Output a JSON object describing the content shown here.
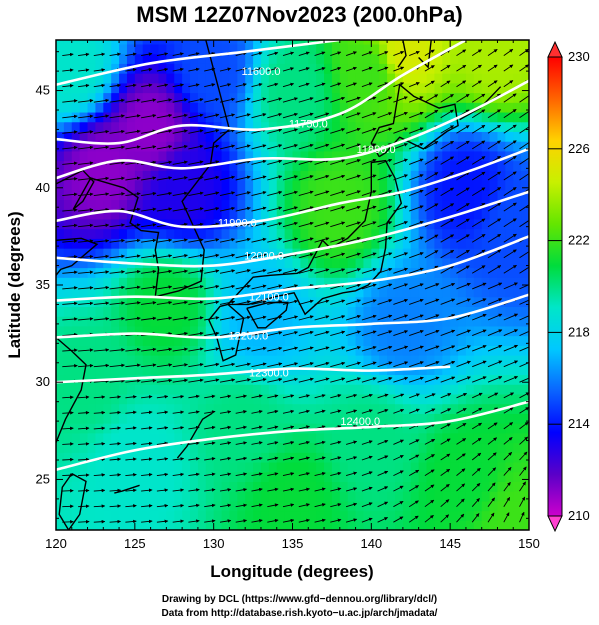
{
  "title": "MSM 12Z07Nov2023 (200.0hPa)",
  "chart_data": {
    "type": "heatmap",
    "title": "MSM 12Z07Nov2023 (200.0hPa)",
    "xlabel": "Longitude (degrees)",
    "ylabel": "Latitude  (degrees)",
    "xlim": [
      120,
      150
    ],
    "ylim": [
      22.4,
      47.6
    ],
    "x_ticks": [
      "120",
      "125",
      "130",
      "135",
      "140",
      "145",
      "150"
    ],
    "y_ticks": [
      "25",
      "30",
      "35",
      "40",
      "45"
    ],
    "colorbar": {
      "range": [
        210,
        230
      ],
      "ticks": [
        "210",
        "214",
        "218",
        "222",
        "226",
        "230"
      ],
      "colors": [
        "#cc00cc",
        "#5a00c8",
        "#0000ff",
        "#0a64ff",
        "#00c8ff",
        "#00e6c8",
        "#00dc3c",
        "#64e600",
        "#c8f000",
        "#ffd200",
        "#ff6400",
        "#ff0000"
      ]
    },
    "temperature_field_samples": [
      {
        "lon": 121,
        "lat": 46,
        "value": 219
      },
      {
        "lon": 123,
        "lat": 41,
        "value": 211
      },
      {
        "lon": 126,
        "lat": 43,
        "value": 211
      },
      {
        "lon": 128,
        "lat": 40,
        "value": 213
      },
      {
        "lon": 130,
        "lat": 46,
        "value": 215
      },
      {
        "lon": 135,
        "lat": 45,
        "value": 220
      },
      {
        "lon": 140,
        "lat": 46,
        "value": 222
      },
      {
        "lon": 142,
        "lat": 47,
        "value": 225
      },
      {
        "lon": 148,
        "lat": 47,
        "value": 224
      },
      {
        "lon": 146,
        "lat": 40,
        "value": 214
      },
      {
        "lon": 149,
        "lat": 38,
        "value": 215
      },
      {
        "lon": 138,
        "lat": 39,
        "value": 222
      },
      {
        "lon": 142,
        "lat": 33,
        "value": 216
      },
      {
        "lon": 133,
        "lat": 33,
        "value": 217
      },
      {
        "lon": 127,
        "lat": 34,
        "value": 221
      },
      {
        "lon": 122,
        "lat": 30,
        "value": 220
      },
      {
        "lon": 125,
        "lat": 26,
        "value": 219
      },
      {
        "lon": 132,
        "lat": 28,
        "value": 220
      },
      {
        "lon": 140,
        "lat": 27,
        "value": 220
      },
      {
        "lon": 146,
        "lat": 25,
        "value": 221
      },
      {
        "lon": 149,
        "lat": 23,
        "value": 222
      },
      {
        "lon": 135,
        "lat": 24,
        "value": 221
      }
    ],
    "contour_labels": [
      "11600.0",
      "11750.0",
      "11800.0",
      "11900.0",
      "12000.0",
      "12100.0",
      "12200.0",
      "12300.0",
      "12400.0"
    ],
    "height_contours": [
      {
        "label": "11600.0",
        "points": [
          [
            120,
            45.3
          ],
          [
            126,
            46.4
          ],
          [
            132,
            47.0
          ],
          [
            138,
            47.6
          ]
        ],
        "label_at": [
          133,
          45.8
        ]
      },
      {
        "label": "11750.0",
        "points": [
          [
            120,
            42.5
          ],
          [
            124,
            42.3
          ],
          [
            128,
            43.2
          ],
          [
            133,
            43.0
          ],
          [
            138,
            43.8
          ],
          [
            142,
            45.8
          ],
          [
            146,
            47.6
          ]
        ],
        "label_at": [
          136,
          43.1
        ]
      },
      {
        "label": "11800.0",
        "points": [
          [
            120,
            40.5
          ],
          [
            124,
            41.4
          ],
          [
            128,
            41.0
          ],
          [
            133,
            41.5
          ],
          [
            138,
            41.5
          ],
          [
            142,
            42.4
          ],
          [
            146,
            43.8
          ],
          [
            150,
            45.5
          ]
        ],
        "label_at": [
          140.3,
          41.8
        ]
      },
      {
        "label": "11900.0",
        "points": [
          [
            120,
            38.3
          ],
          [
            124,
            38.8
          ],
          [
            128,
            38.0
          ],
          [
            133,
            38.3
          ],
          [
            138,
            39.2
          ],
          [
            142,
            39.8
          ],
          [
            146,
            40.8
          ],
          [
            150,
            42.0
          ]
        ],
        "label_at": [
          131.5,
          38.0
        ]
      },
      {
        "label": "12000.0",
        "points": [
          [
            120,
            36.4
          ],
          [
            125,
            36.1
          ],
          [
            130,
            36.0
          ],
          [
            135,
            36.6
          ],
          [
            140,
            37.4
          ],
          [
            145,
            38.5
          ],
          [
            150,
            39.8
          ]
        ],
        "label_at": [
          133.2,
          36.3
        ]
      },
      {
        "label": "12100.0",
        "points": [
          [
            120,
            34.2
          ],
          [
            125,
            34.4
          ],
          [
            130,
            34.3
          ],
          [
            135,
            34.8
          ],
          [
            140,
            35.2
          ],
          [
            145,
            36.0
          ],
          [
            150,
            37.5
          ]
        ],
        "label_at": [
          133.5,
          34.2
        ]
      },
      {
        "label": "12200.0",
        "points": [
          [
            120,
            32.3
          ],
          [
            125,
            32.5
          ],
          [
            130,
            32.3
          ],
          [
            135,
            32.8
          ],
          [
            140,
            33.0
          ],
          [
            145,
            33.3
          ],
          [
            150,
            34.5
          ]
        ],
        "label_at": [
          132.2,
          32.2
        ]
      },
      {
        "label": "12300.0",
        "points": [
          [
            120,
            30.0
          ],
          [
            125,
            30.2
          ],
          [
            130,
            30.4
          ],
          [
            135,
            30.7
          ],
          [
            140,
            30.6
          ],
          [
            145,
            30.8
          ]
        ],
        "label_at": [
          133.5,
          30.3
        ]
      },
      {
        "label": "12400.0",
        "points": [
          [
            120,
            25.5
          ],
          [
            125,
            26.5
          ],
          [
            130,
            27.1
          ],
          [
            135,
            27.5
          ],
          [
            140,
            27.7
          ],
          [
            145,
            28.0
          ],
          [
            150,
            29.0
          ]
        ],
        "label_at": [
          139.3,
          27.8
        ]
      }
    ],
    "wind_field": "uniform westerly flow veering northeastward; streams curving anticyclonically in south-east"
  },
  "credits": {
    "line1": "Drawing by DCL (https://www.gfd−dennou.org/library/dcl/)",
    "line2": "Data from http://database.rish.kyoto−u.ac.jp/arch/jmadata/"
  }
}
